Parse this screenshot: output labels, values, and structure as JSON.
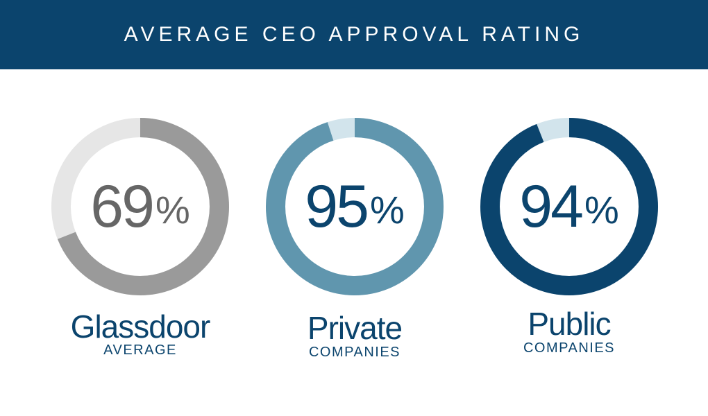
{
  "header": {
    "title": "AVERAGE CEO APPROVAL RATING"
  },
  "colors": {
    "header_bg": "#0b446d",
    "text_dark_blue": "#0b446d",
    "glassdoor_fill": "#9a9a9a",
    "glassdoor_track": "#e6e6e6",
    "glassdoor_text": "#666666",
    "private_fill": "#6096ae",
    "private_track": "#d2e4ec",
    "public_fill": "#0b446d",
    "public_track": "#d2e4ec"
  },
  "chart_data": {
    "type": "donut",
    "title": "AVERAGE CEO APPROVAL RATING",
    "unit": "%",
    "series": [
      {
        "value": 69,
        "value_label": "69",
        "percent_sign": "%",
        "label": "Glassdoor",
        "sublabel": "AVERAGE",
        "fill_color": "#9a9a9a",
        "track_color": "#e6e6e6",
        "value_color": "#666666"
      },
      {
        "value": 95,
        "value_label": "95",
        "percent_sign": "%",
        "label": "Private",
        "sublabel": "COMPANIES",
        "fill_color": "#6096ae",
        "track_color": "#d2e4ec",
        "value_color": "#0b446d"
      },
      {
        "value": 94,
        "value_label": "94",
        "percent_sign": "%",
        "label": "Public",
        "sublabel": "COMPANIES",
        "fill_color": "#0b446d",
        "track_color": "#d2e4ec",
        "value_color": "#0b446d"
      }
    ]
  }
}
